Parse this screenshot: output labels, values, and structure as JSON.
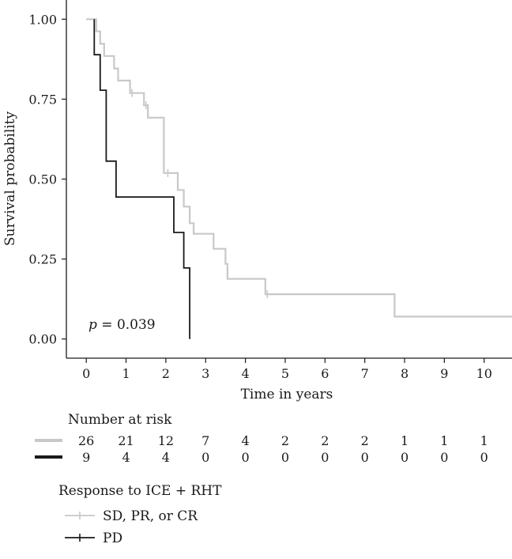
{
  "chart_data": {
    "type": "line",
    "subtype": "kaplan-meier",
    "title": "",
    "xlabel": "Time in years",
    "ylabel": "Survival probability",
    "xlim": [
      -0.5,
      10.7
    ],
    "ylim": [
      -0.06,
      1.06
    ],
    "x_ticks": [
      0,
      1,
      2,
      3,
      4,
      5,
      6,
      7,
      8,
      9,
      10
    ],
    "y_ticks": [
      0.0,
      0.25,
      0.5,
      0.75,
      1.0
    ],
    "y_tick_labels": [
      "0.00",
      "0.25",
      "0.50",
      "0.75",
      "1.00"
    ],
    "grid": false,
    "annotation": {
      "prefix": "p",
      "text": " = 0.039",
      "x": 0.1,
      "y": 0.05
    },
    "series": [
      {
        "name": "SD, PR, or CR",
        "color": "#c8c8c8",
        "steps": [
          [
            0,
            1.0
          ],
          [
            0.25,
            0.962
          ],
          [
            0.35,
            0.923
          ],
          [
            0.45,
            0.885
          ],
          [
            0.7,
            0.846
          ],
          [
            0.8,
            0.808
          ],
          [
            1.1,
            0.769
          ],
          [
            1.3,
            0.769
          ],
          [
            1.45,
            0.731
          ],
          [
            1.55,
            0.692
          ],
          [
            1.95,
            0.519
          ],
          [
            2.2,
            0.519
          ],
          [
            2.3,
            0.466
          ],
          [
            2.45,
            0.414
          ],
          [
            2.6,
            0.362
          ],
          [
            2.7,
            0.329
          ],
          [
            3.2,
            0.282
          ],
          [
            3.5,
            0.235
          ],
          [
            3.55,
            0.188
          ],
          [
            4.5,
            0.14
          ],
          [
            7.75,
            0.07
          ],
          [
            10.7,
            0.07
          ]
        ],
        "censors": [
          [
            1.15,
            0.769
          ],
          [
            1.5,
            0.731
          ],
          [
            2.05,
            0.519
          ],
          [
            4.55,
            0.14
          ]
        ]
      },
      {
        "name": "PD",
        "color": "#1a1a1a",
        "steps": [
          [
            0.2,
            1.0
          ],
          [
            0.2,
            0.889
          ],
          [
            0.35,
            0.778
          ],
          [
            0.5,
            0.556
          ],
          [
            0.75,
            0.444
          ],
          [
            2.2,
            0.333
          ],
          [
            2.45,
            0.222
          ],
          [
            2.6,
            0.0
          ]
        ],
        "censors": []
      }
    ],
    "risk_table": {
      "title": "Number at risk",
      "times": [
        0,
        1,
        2,
        3,
        4,
        5,
        6,
        7,
        8,
        9,
        10
      ],
      "rows": [
        {
          "color": "#c8c8c8",
          "counts": [
            "26",
            "21",
            "12",
            "7",
            "4",
            "2",
            "2",
            "2",
            "1",
            "1",
            "1"
          ]
        },
        {
          "color": "#1a1a1a",
          "counts": [
            "9",
            "4",
            "4",
            "0",
            "0",
            "0",
            "0",
            "0",
            "0",
            "0",
            "0"
          ]
        }
      ]
    },
    "legend": {
      "title": "Response to ICE + RHT",
      "placement": "bottom-left",
      "items": [
        "SD, PR, or CR",
        "PD"
      ]
    }
  }
}
